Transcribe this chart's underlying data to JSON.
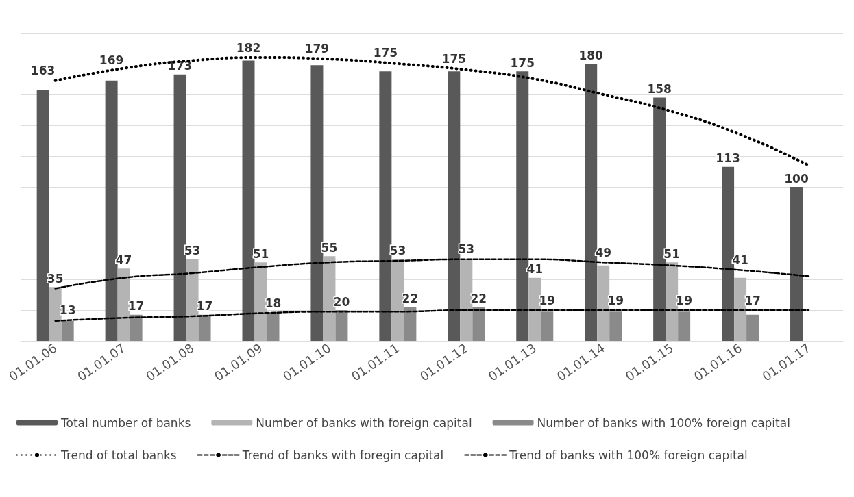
{
  "chart_data": {
    "type": "bar",
    "categories": [
      "01.01.06",
      "01.01.07",
      "01.01.08",
      "01.01.09",
      "01.01.10",
      "01.01.11",
      "01.01.12",
      "01.01.13",
      "01.01.14",
      "01.01.15",
      "01.01.16",
      "01.01.17"
    ],
    "series": [
      {
        "name": "Total number of banks",
        "color": "#595959",
        "values": [
          163,
          169,
          173,
          182,
          179,
          175,
          175,
          175,
          180,
          158,
          113,
          100
        ],
        "value_labels": [
          "163",
          "169",
          "173",
          "182",
          "179",
          "175",
          "175",
          "175",
          "180",
          "158",
          "113",
          "100"
        ]
      },
      {
        "name": "Number of banks with foreign capital",
        "color": "#b4b4b4",
        "values": [
          35,
          47,
          53,
          51,
          55,
          53,
          53,
          41,
          49,
          51,
          41,
          null
        ],
        "value_labels": [
          "35",
          "47",
          "53",
          "51",
          "55",
          "53",
          "53",
          "41",
          "49",
          "51",
          "41",
          null
        ]
      },
      {
        "name": "Number of banks with 100% foreign capital",
        "color": "#8a8a8a",
        "values": [
          13,
          17,
          17,
          18,
          20,
          22,
          22,
          19,
          19,
          19,
          17,
          null
        ],
        "value_labels": [
          "13",
          "17",
          "17",
          "18",
          "20",
          "22",
          "22",
          "19",
          "19",
          "19",
          "17",
          null
        ]
      },
      {
        "name": "Trend of total banks",
        "type": "line",
        "color": "#000000",
        "line_style": "dotted",
        "values": [
          169,
          177,
          182,
          184,
          183,
          180,
          176,
          170,
          160,
          149,
          134,
          114
        ]
      },
      {
        "name": "Trend of banks with foregin capital",
        "type": "line",
        "color": "#000000",
        "line_style": "dashed",
        "values": [
          34,
          41,
          44,
          48,
          51,
          52,
          53,
          53,
          51,
          49,
          46,
          42
        ]
      },
      {
        "name": "Trend of banks with 100% foreign capital",
        "type": "line",
        "color": "#000000",
        "line_style": "dashed",
        "values": [
          13,
          15,
          16,
          18,
          19,
          19,
          20,
          20,
          20,
          20,
          20,
          20
        ]
      }
    ],
    "marker": "none",
    "ylim": [
      0,
      200
    ],
    "yticks": [
      {
        "value": 0,
        "label": null
      },
      {
        "value": 20,
        "label": null
      },
      {
        "value": 40,
        "label": null
      },
      {
        "value": 60,
        "label": null
      },
      {
        "value": 80,
        "label": null
      },
      {
        "value": 100,
        "label": null
      },
      {
        "value": 120,
        "label": null
      },
      {
        "value": 140,
        "label": null
      },
      {
        "value": 160,
        "label": null
      },
      {
        "value": 180,
        "label": null
      },
      {
        "value": 200,
        "label": null
      }
    ],
    "grid": "y",
    "legend": "bottom"
  }
}
